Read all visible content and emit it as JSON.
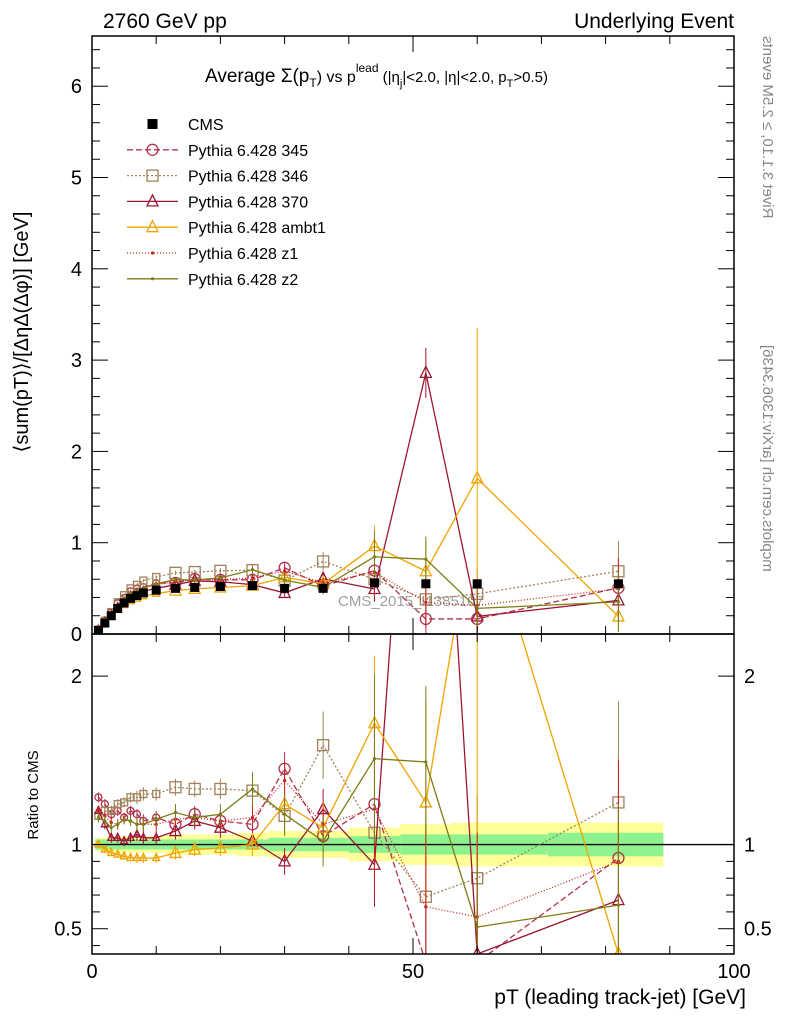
{
  "header": {
    "left": "2760 GeV pp",
    "right": "Underlying Event",
    "side_top": "Rivet 3.1.10, ≥ 2.5M events",
    "side_bottom": "mcplots.cern.ch [arXiv:1306.3436]",
    "watermark": "CMS_2015_I1385107"
  },
  "chart_data": {
    "type": "line",
    "title_parts": {
      "a": "Average ",
      "sigma": "Σ(p",
      "t": "T",
      "b": ") vs p",
      "lead": "lead",
      "c": " (|η",
      "j": "j",
      "d": "|<2.0, |η|<2.0, p",
      "e": ">0.5)"
    },
    "ylabel_main": "⟨sum(pT)⟩/[ΔηΔ(Δφ)] [GeV]",
    "ylabel_ratio": "Ratio to CMS",
    "xlabel": "pT (leading track-jet) [GeV]",
    "xlim": [
      0,
      100
    ],
    "ylim_main": [
      0,
      6.55
    ],
    "ylim_ratio": [
      0.35,
      2.25
    ],
    "x_ticks": [
      "0",
      "50",
      "100"
    ],
    "y_ticks_main": [
      "0",
      "1",
      "2",
      "3",
      "4",
      "5",
      "6"
    ],
    "y_ticks_ratio": [
      "0.5",
      "1",
      "2"
    ],
    "x": [
      1,
      2,
      3,
      4,
      5,
      6,
      7,
      8,
      10,
      13,
      16,
      20,
      25,
      30,
      36,
      44,
      52,
      60,
      82
    ],
    "cms": {
      "name": "CMS",
      "values": [
        0.04,
        0.12,
        0.2,
        0.28,
        0.34,
        0.39,
        0.42,
        0.45,
        0.48,
        0.5,
        0.51,
        0.52,
        0.53,
        0.5,
        0.5,
        0.56,
        0.55,
        0.55,
        0.55
      ],
      "band_inner": [
        0.03,
        0.03,
        0.03,
        0.03,
        0.03,
        0.03,
        0.03,
        0.03,
        0.03,
        0.03,
        0.03,
        0.03,
        0.03,
        0.04,
        0.04,
        0.05,
        0.06,
        0.06,
        0.07
      ],
      "band_outer": [
        0.04,
        0.04,
        0.04,
        0.05,
        0.05,
        0.05,
        0.05,
        0.05,
        0.05,
        0.06,
        0.06,
        0.06,
        0.07,
        0.08,
        0.08,
        0.1,
        0.12,
        0.13,
        0.13
      ]
    },
    "series": [
      {
        "name": "Pythia 6.428 345",
        "color": "#b2314a",
        "dash": "6,3",
        "marker": "circle",
        "ratio": [
          1.28,
          1.24,
          1.18,
          1.2,
          1.16,
          1.2,
          1.18,
          1.14,
          1.16,
          1.12,
          1.18,
          1.14,
          1.12,
          1.45,
          1.05,
          1.24,
          0.3,
          0.3,
          0.92
        ],
        "ratio_err": [
          0.03,
          0.03,
          0.03,
          0.03,
          0.03,
          0.03,
          0.03,
          0.04,
          0.04,
          0.05,
          0.05,
          0.06,
          0.08,
          0.1,
          0.1,
          0.5,
          0.5,
          0.5,
          0.6
        ]
      },
      {
        "name": "Pythia 6.428 346",
        "color": "#a0825a",
        "dash": "2,2",
        "marker": "square",
        "ratio": [
          1.17,
          1.2,
          1.2,
          1.24,
          1.25,
          1.28,
          1.28,
          1.3,
          1.3,
          1.34,
          1.33,
          1.33,
          1.32,
          1.17,
          1.59,
          1.07,
          0.69,
          0.8,
          1.25
        ],
        "ratio_err": [
          0.03,
          0.03,
          0.03,
          0.03,
          0.03,
          0.03,
          0.04,
          0.04,
          0.04,
          0.05,
          0.05,
          0.06,
          0.08,
          0.12,
          0.2,
          0.4,
          0.5,
          0.5,
          0.6
        ]
      },
      {
        "name": "Pythia 6.428 370",
        "color": "#9c1633",
        "dash": "",
        "marker": "triangle",
        "ratio": [
          1.2,
          1.12,
          1.04,
          1.04,
          1.02,
          1.04,
          1.06,
          1.04,
          1.04,
          1.08,
          1.14,
          1.1,
          1.02,
          0.9,
          1.21,
          0.88,
          5.2,
          0.35,
          0.67
        ],
        "ratio_err": [
          0.03,
          0.03,
          0.03,
          0.03,
          0.03,
          0.03,
          0.04,
          0.04,
          0.04,
          0.05,
          0.05,
          0.06,
          0.08,
          0.08,
          0.12,
          0.25,
          0.5,
          0.5,
          0.6
        ]
      },
      {
        "name": "Pythia 6.428 ambt1",
        "color": "#f0a400",
        "dash": "",
        "marker": "triangle",
        "ratio": [
          1.0,
          0.97,
          0.95,
          0.94,
          0.93,
          0.92,
          0.92,
          0.92,
          0.92,
          0.95,
          0.97,
          0.98,
          1.0,
          1.24,
          1.1,
          1.72,
          1.25,
          3.1,
          0.35
        ],
        "ratio_err": [
          0.02,
          0.02,
          0.02,
          0.02,
          0.02,
          0.02,
          0.03,
          0.03,
          0.03,
          0.04,
          0.04,
          0.05,
          0.07,
          0.1,
          0.15,
          0.4,
          0.6,
          3.0,
          0.3
        ]
      },
      {
        "name": "Pythia 6.428 z1",
        "color": "#cc2222",
        "dash": "1,2",
        "marker": "dot",
        "ratio": [
          1.2,
          1.17,
          1.13,
          1.12,
          1.15,
          1.14,
          1.12,
          1.12,
          1.12,
          1.15,
          1.16,
          1.14,
          1.16,
          1.38,
          1.12,
          1.21,
          0.63,
          0.57,
          0.9
        ],
        "ratio_err": [
          0.03,
          0.03,
          0.03,
          0.03,
          0.03,
          0.03,
          0.04,
          0.04,
          0.04,
          0.05,
          0.05,
          0.06,
          0.08,
          0.1,
          0.1,
          0.5,
          0.5,
          0.5,
          0.6
        ]
      },
      {
        "name": "Pythia 6.428 z2",
        "color": "#7d7d16",
        "dash": "",
        "marker": "dot",
        "ratio": [
          1.16,
          1.14,
          1.1,
          1.12,
          1.15,
          1.14,
          1.12,
          1.12,
          1.15,
          1.19,
          1.16,
          1.18,
          1.33,
          1.18,
          1.02,
          1.51,
          1.49,
          0.51,
          0.64
        ],
        "ratio_err": [
          0.03,
          0.03,
          0.03,
          0.03,
          0.03,
          0.03,
          0.04,
          0.04,
          0.04,
          0.05,
          0.05,
          0.06,
          0.1,
          0.12,
          0.15,
          0.5,
          0.45,
          0.4,
          0.6
        ]
      }
    ]
  }
}
